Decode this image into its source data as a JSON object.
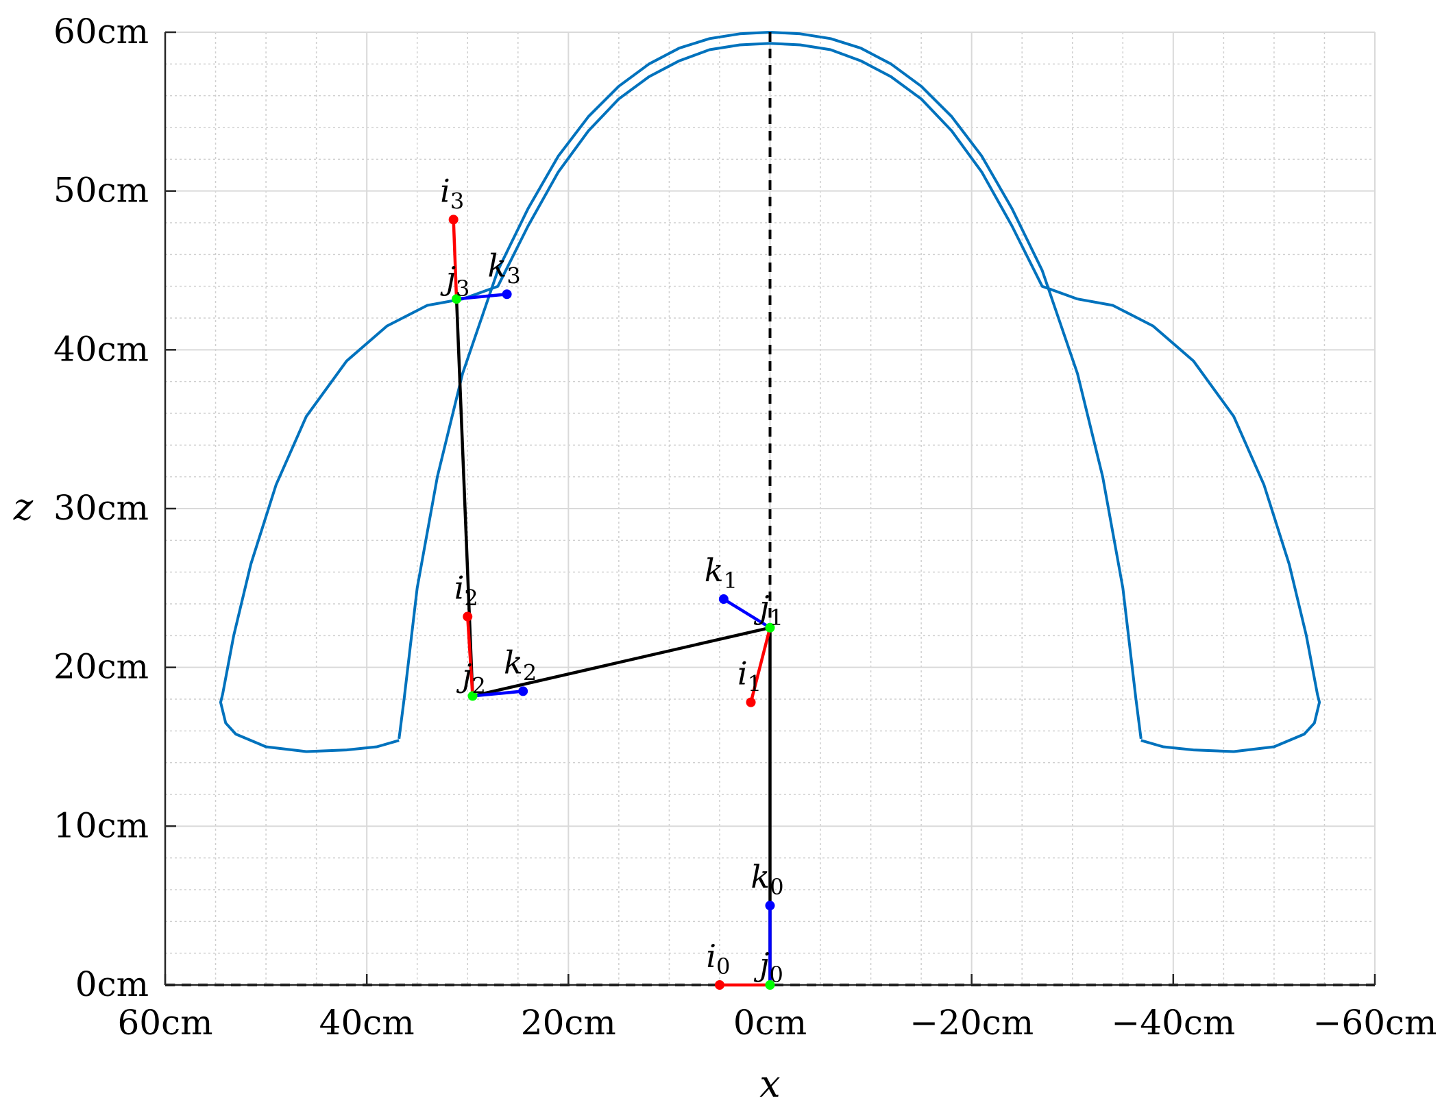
{
  "chart_data": {
    "type": "line",
    "xlabel": "x",
    "ylabel": "z",
    "xlim": [
      60,
      -60
    ],
    "ylim": [
      0,
      60
    ],
    "x_reversed": true,
    "grid": true,
    "minor_grid": true,
    "x_ticks": [
      {
        "value": 60,
        "label": "60cm"
      },
      {
        "value": 40,
        "label": "40cm"
      },
      {
        "value": 20,
        "label": "20cm"
      },
      {
        "value": 0,
        "label": "0cm"
      },
      {
        "value": -20,
        "label": "−20cm"
      },
      {
        "value": -40,
        "label": "−40cm"
      },
      {
        "value": -60,
        "label": "−60cm"
      }
    ],
    "y_ticks": [
      {
        "value": 0,
        "label": "0cm"
      },
      {
        "value": 10,
        "label": "10cm"
      },
      {
        "value": 20,
        "label": "20cm"
      },
      {
        "value": 30,
        "label": "30cm"
      },
      {
        "value": 40,
        "label": "40cm"
      },
      {
        "value": 50,
        "label": "50cm"
      },
      {
        "value": 60,
        "label": "60cm"
      }
    ],
    "colors": {
      "workspace": "#0072BD",
      "link": "#000000",
      "i_axis": "#FF0000",
      "j_axis": "#00FF00",
      "k_axis": "#0000FF"
    },
    "workspace_curves": [
      [
        [
          0,
          60
        ],
        [
          -3,
          59.9
        ],
        [
          -6,
          59.6
        ],
        [
          -9,
          59.0
        ],
        [
          -12,
          58.0
        ],
        [
          -15,
          56.6
        ],
        [
          -18,
          54.7
        ],
        [
          -21,
          52.2
        ],
        [
          -24,
          48.9
        ],
        [
          -27,
          45.0
        ],
        [
          -30.5,
          38.5
        ],
        [
          -33,
          32.0
        ],
        [
          -35,
          25.0
        ],
        [
          -36.3,
          18.0
        ],
        [
          -36.8,
          15.5
        ]
      ],
      [
        [
          0,
          59.3
        ],
        [
          -3,
          59.2
        ],
        [
          -6,
          58.9
        ],
        [
          -9,
          58.2
        ],
        [
          -12,
          57.2
        ],
        [
          -15,
          55.8
        ],
        [
          -18,
          53.8
        ],
        [
          -21,
          51.2
        ],
        [
          -24,
          47.8
        ],
        [
          -27,
          44.0
        ],
        [
          -30.5,
          43.2
        ]
      ],
      [
        [
          -30.5,
          43.2
        ],
        [
          -34,
          42.8
        ],
        [
          -38,
          41.5
        ],
        [
          -42,
          39.3
        ],
        [
          -46,
          35.8
        ],
        [
          -49,
          31.5
        ],
        [
          -51.5,
          26.5
        ],
        [
          -53.2,
          22.0
        ],
        [
          -54.3,
          18.3
        ],
        [
          -54.5,
          17.8
        ],
        [
          -54,
          16.5
        ],
        [
          -53,
          15.8
        ],
        [
          -50,
          15.0
        ],
        [
          -46,
          14.7
        ],
        [
          -42,
          14.8
        ],
        [
          -39,
          15.0
        ],
        [
          -36.8,
          15.4
        ]
      ],
      [
        [
          0,
          60
        ],
        [
          3,
          59.9
        ],
        [
          6,
          59.6
        ],
        [
          9,
          59.0
        ],
        [
          12,
          58.0
        ],
        [
          15,
          56.6
        ],
        [
          18,
          54.7
        ],
        [
          21,
          52.2
        ],
        [
          24,
          48.9
        ],
        [
          27,
          45.0
        ],
        [
          30.5,
          38.5
        ],
        [
          33,
          32.0
        ],
        [
          35,
          25.0
        ],
        [
          36.3,
          18.0
        ],
        [
          36.8,
          15.5
        ]
      ],
      [
        [
          0,
          59.3
        ],
        [
          3,
          59.2
        ],
        [
          6,
          58.9
        ],
        [
          9,
          58.2
        ],
        [
          12,
          57.2
        ],
        [
          15,
          55.8
        ],
        [
          18,
          53.8
        ],
        [
          21,
          51.2
        ],
        [
          24,
          47.8
        ],
        [
          27,
          44.0
        ],
        [
          30.5,
          43.2
        ]
      ],
      [
        [
          30.5,
          43.2
        ],
        [
          34,
          42.8
        ],
        [
          38,
          41.5
        ],
        [
          42,
          39.3
        ],
        [
          46,
          35.8
        ],
        [
          49,
          31.5
        ],
        [
          51.5,
          26.5
        ],
        [
          53.2,
          22.0
        ],
        [
          54.3,
          18.3
        ],
        [
          54.5,
          17.8
        ],
        [
          54,
          16.5
        ],
        [
          53,
          15.8
        ],
        [
          50,
          15.0
        ],
        [
          46,
          14.7
        ],
        [
          42,
          14.8
        ],
        [
          39,
          15.0
        ],
        [
          36.8,
          15.4
        ]
      ]
    ],
    "links": [
      [
        0,
        0
      ],
      [
        0,
        22.5
      ],
      [
        29.5,
        18.2
      ],
      [
        31.1,
        43.2
      ]
    ],
    "frames": [
      {
        "origin": [
          0,
          0
        ],
        "i": [
          5.0,
          0
        ],
        "k": [
          0,
          5.0
        ],
        "i_label": "i",
        "j_label": "j",
        "k_label": "k",
        "sub": "0"
      },
      {
        "origin": [
          0,
          22.5
        ],
        "i": [
          1.9,
          17.8
        ],
        "k": [
          4.6,
          24.3
        ],
        "i_label": "i",
        "j_label": "j",
        "k_label": "k",
        "sub": "1"
      },
      {
        "origin": [
          29.5,
          18.2
        ],
        "i": [
          30.0,
          23.2
        ],
        "k": [
          24.5,
          18.5
        ],
        "i_label": "i",
        "j_label": "j",
        "k_label": "k",
        "sub": "2"
      },
      {
        "origin": [
          31.1,
          43.2
        ],
        "i": [
          31.4,
          48.2
        ],
        "k": [
          26.1,
          43.5
        ],
        "i_label": "i",
        "j_label": "j",
        "k_label": "k",
        "sub": "3"
      }
    ]
  }
}
